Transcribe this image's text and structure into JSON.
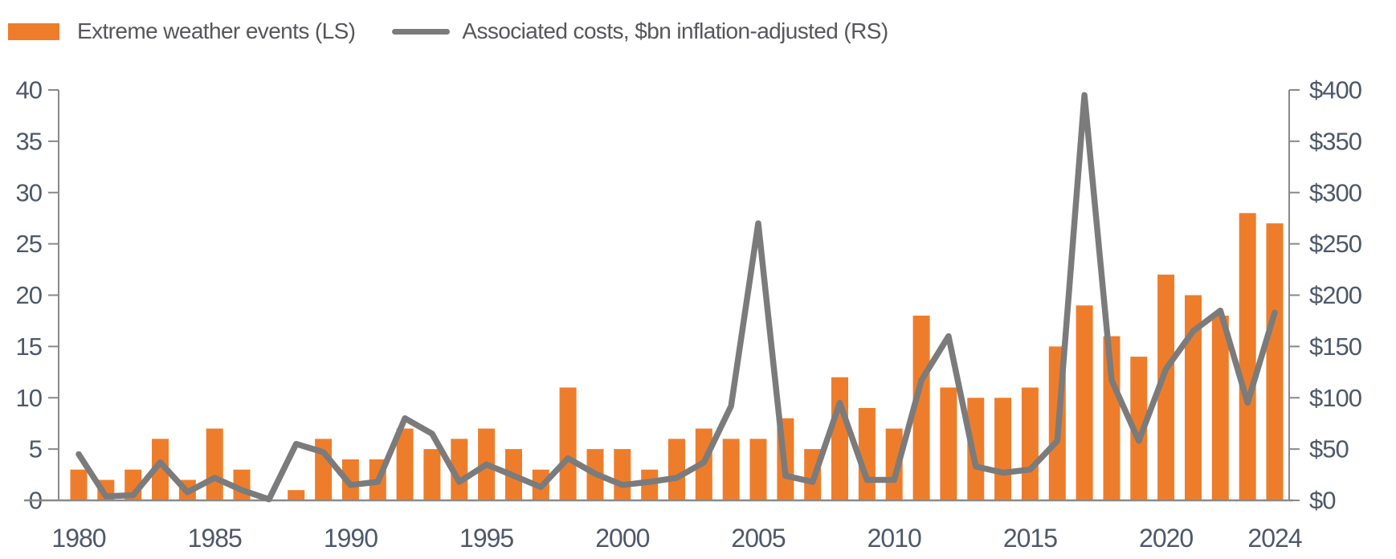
{
  "legend": {
    "series1_label": "Extreme weather events (LS)",
    "series2_label": "Associated costs, $bn inflation-adjusted (RS)"
  },
  "colors": {
    "bar_orange": "#ee7d2b",
    "line_gray": "#7b7b7b",
    "axis_gray": "#898989",
    "tick_text": "#4e586a",
    "legend_text": "#56575b"
  },
  "chart_data": {
    "type": "bar",
    "subtype": "dual-axis bar + line combo",
    "title": "",
    "xlabel": "",
    "ylabel_left": "Extreme weather events",
    "ylabel_right": "Associated costs, $bn inflation-adjusted",
    "x": [
      1980,
      1981,
      1982,
      1983,
      1984,
      1985,
      1986,
      1987,
      1988,
      1989,
      1990,
      1991,
      1992,
      1993,
      1994,
      1995,
      1996,
      1997,
      1998,
      1999,
      2000,
      2001,
      2002,
      2003,
      2004,
      2005,
      2006,
      2007,
      2008,
      2009,
      2010,
      2011,
      2012,
      2013,
      2014,
      2015,
      2016,
      2017,
      2018,
      2019,
      2020,
      2021,
      2022,
      2023,
      2024
    ],
    "series": [
      {
        "name": "Extreme weather events (LS)",
        "type": "bar",
        "axis": "left",
        "values": [
          3,
          2,
          3,
          6,
          2,
          7,
          3,
          0,
          1,
          6,
          4,
          4,
          7,
          5,
          6,
          7,
          5,
          3,
          11,
          5,
          5,
          3,
          6,
          7,
          6,
          6,
          8,
          5,
          12,
          9,
          7,
          18,
          11,
          10,
          10,
          11,
          15,
          19,
          16,
          14,
          22,
          20,
          18,
          28,
          27
        ]
      },
      {
        "name": "Associated costs, $bn inflation-adjusted (RS)",
        "type": "line",
        "axis": "right",
        "values": [
          45,
          4,
          5,
          37,
          8,
          22,
          10,
          1,
          55,
          47,
          15,
          18,
          80,
          65,
          18,
          35,
          24,
          13,
          41,
          26,
          15,
          18,
          22,
          37,
          92,
          270,
          24,
          18,
          95,
          20,
          20,
          117,
          160,
          33,
          27,
          30,
          58,
          395,
          117,
          58,
          128,
          165,
          185,
          95,
          183
        ]
      }
    ],
    "left_axis": {
      "range": [
        0,
        40
      ],
      "tick_step": 5,
      "tick_labels": [
        "0",
        "5",
        "10",
        "15",
        "20",
        "25",
        "30",
        "35",
        "40"
      ]
    },
    "right_axis": {
      "range": [
        0,
        400
      ],
      "tick_step": 50,
      "tick_labels": [
        "$0",
        "$50",
        "$100",
        "$150",
        "$200",
        "$250",
        "$300",
        "$350",
        "$400"
      ]
    },
    "x_tick_labels": [
      "1980",
      "1985",
      "1990",
      "1995",
      "2000",
      "2005",
      "2010",
      "2015",
      "2020",
      "2024"
    ],
    "grid": false,
    "legend_position": "top-left"
  }
}
